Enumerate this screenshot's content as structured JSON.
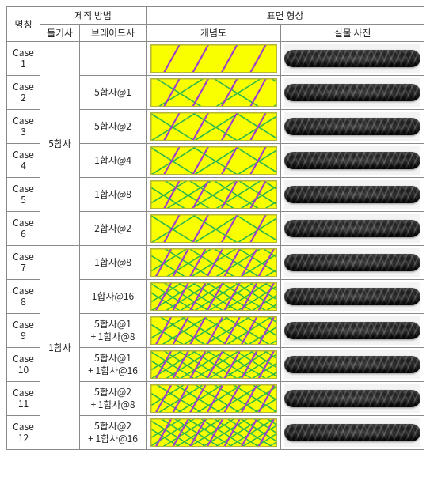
{
  "colors": {
    "yarn_bg": "#faff00",
    "wrap_purple": "#a040c8",
    "braid_green": "#2fb84a",
    "braid_border": "#b5b53c",
    "table_border": "#8a8a8a",
    "text": "#262626",
    "page_bg": "#ffffff",
    "photo_bg": "#f3f3f3",
    "rope_dark": "#1a1a1a"
  },
  "header": {
    "col_name": "명칭",
    "group_method": "제직 방법",
    "col_dolgi": "돌기사",
    "col_braid": "브레이드사",
    "group_surface": "표면 형상",
    "col_diagram": "개념도",
    "col_photo": "실물 사진"
  },
  "groups": [
    {
      "dol": "5합사",
      "row_count": 6
    },
    {
      "dol": "1합사",
      "row_count": 6
    }
  ],
  "rows": [
    {
      "case": "Case\n1",
      "braid": "-",
      "wraps": 4,
      "green_slash": 0,
      "green_back": 0,
      "dense": false
    },
    {
      "case": "Case\n2",
      "braid": "5합사@1",
      "wraps": 4,
      "green_slash": 3,
      "green_back": 3,
      "dense": false
    },
    {
      "case": "Case\n3",
      "braid": "5합사@2",
      "wraps": 4,
      "green_slash": 4,
      "green_back": 4,
      "dense": false
    },
    {
      "case": "Case\n4",
      "braid": "1합사@4",
      "wraps": 4,
      "green_slash": 4,
      "green_back": 4,
      "dense": false
    },
    {
      "case": "Case\n5",
      "braid": "1합사@8",
      "wraps": 4,
      "green_slash": 7,
      "green_back": 7,
      "dense": false
    },
    {
      "case": "Case\n6",
      "braid": "2합사@2",
      "wraps": 4,
      "green_slash": 4,
      "green_back": 4,
      "dense": false
    },
    {
      "case": "Case\n7",
      "braid": "1합사@8",
      "wraps": 7,
      "green_slash": 7,
      "green_back": 7,
      "dense": false
    },
    {
      "case": "Case\n8",
      "braid": "1합사@16",
      "wraps": 7,
      "green_slash": 12,
      "green_back": 12,
      "dense": true
    },
    {
      "case": "Case\n9",
      "braid": "5합사@1\n+ 1합사@8",
      "wraps": 7,
      "green_slash": 8,
      "green_back": 8,
      "dense": false
    },
    {
      "case": "Case\n10",
      "braid": "5합사@1\n+ 1합사@16",
      "wraps": 7,
      "green_slash": 12,
      "green_back": 12,
      "dense": true
    },
    {
      "case": "Case\n11",
      "braid": "5합사@2\n+ 1합사@8",
      "wraps": 7,
      "green_slash": 9,
      "green_back": 9,
      "dense": false
    },
    {
      "case": "Case\n12",
      "braid": "5합사@2\n+ 1합사@16",
      "wraps": 7,
      "green_slash": 13,
      "green_back": 13,
      "dense": true
    }
  ],
  "diagram_geometry": {
    "width": 160,
    "height": 36,
    "wrap_stroke": 2.2,
    "wrap_angle_shear": 10,
    "green_stroke": 1.6
  }
}
